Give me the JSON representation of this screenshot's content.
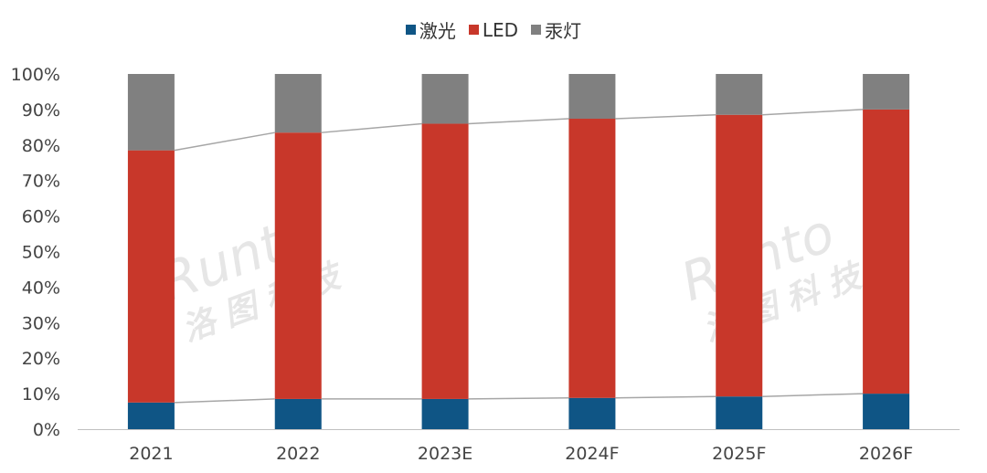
{
  "chart_data": {
    "type": "bar",
    "stacked": "percent",
    "categories": [
      "2021",
      "2022",
      "2023E",
      "2024F",
      "2025F",
      "2026F"
    ],
    "series": [
      {
        "name": "激光",
        "color": "#0F5585",
        "values": [
          7.5,
          8.5,
          8.5,
          8.8,
          9.2,
          10.0
        ]
      },
      {
        "name": "LED",
        "color": "#C8372A",
        "values": [
          71.0,
          75.0,
          77.5,
          78.6,
          79.3,
          80.0
        ]
      },
      {
        "name": "汞灯",
        "color": "#808080",
        "values": [
          21.5,
          16.5,
          14.0,
          12.6,
          11.5,
          10.0
        ]
      }
    ],
    "ylim": [
      0,
      100
    ],
    "yticks": [
      "0%",
      "10%",
      "20%",
      "30%",
      "40%",
      "50%",
      "60%",
      "70%",
      "80%",
      "90%",
      "100%"
    ],
    "legend_position": "top",
    "series_lines": true,
    "grid": false
  },
  "watermark": {
    "latin": "Runto",
    "chinese": "洛图科技"
  }
}
